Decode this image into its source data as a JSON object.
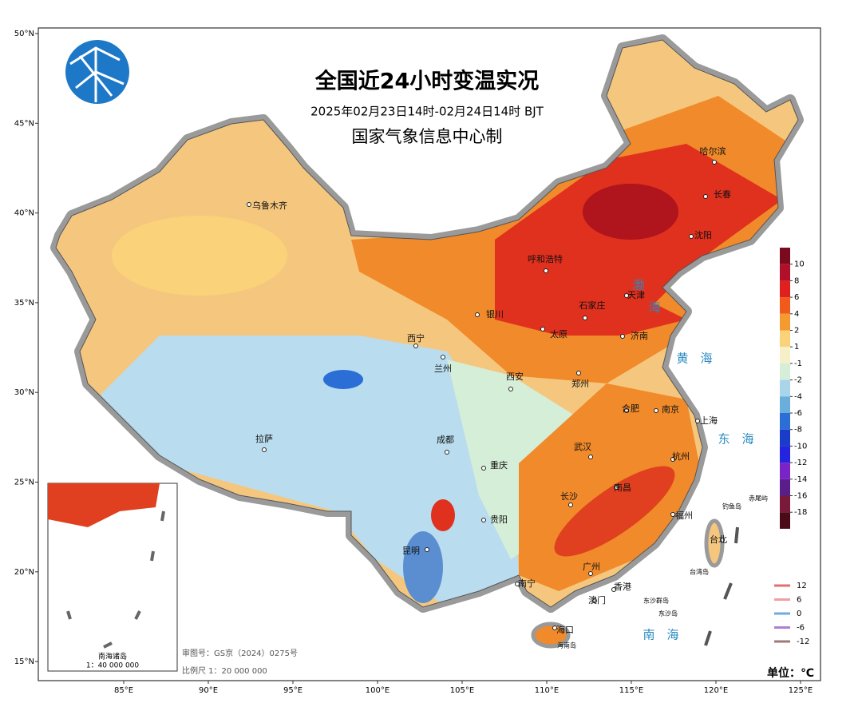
{
  "title": "全国近24小时变温实况",
  "subtitle": "2025年02月23日14时-02月24日14时 BJT",
  "producer": "国家气象信息中心制",
  "lat_ticks": [
    {
      "value": 50,
      "label": "50°N"
    },
    {
      "value": 45,
      "label": "45°N"
    },
    {
      "value": 40,
      "label": "40°N"
    },
    {
      "value": 35,
      "label": "35°N"
    },
    {
      "value": 30,
      "label": "30°N"
    },
    {
      "value": 25,
      "label": "25°N"
    },
    {
      "value": 20,
      "label": "20°N"
    },
    {
      "value": 15,
      "label": "15°N"
    }
  ],
  "lon_ticks": [
    {
      "value": 85,
      "label": "85°E"
    },
    {
      "value": 90,
      "label": "90°E"
    },
    {
      "value": 95,
      "label": "95°E"
    },
    {
      "value": 100,
      "label": "100°E"
    },
    {
      "value": 105,
      "label": "105°E"
    },
    {
      "value": 110,
      "label": "110°E"
    },
    {
      "value": 115,
      "label": "115°E"
    },
    {
      "value": 120,
      "label": "120°E"
    },
    {
      "value": 125,
      "label": "125°E"
    }
  ],
  "cities": [
    "哈尔滨",
    "长春",
    "沈阳",
    "乌鲁木齐",
    "呼和浩特",
    "天津",
    "石家庄",
    "银川",
    "太原",
    "济南",
    "西宁",
    "兰州",
    "西安",
    "郑州",
    "合肥",
    "南京",
    "上海",
    "拉萨",
    "成都",
    "武汉",
    "杭州",
    "重庆",
    "长沙",
    "南昌",
    "贵阳",
    "福州",
    "昆明",
    "台北",
    "南宁",
    "广州",
    "香港",
    "澳门",
    "海口"
  ],
  "islands": [
    "钓鱼岛",
    "赤尾屿",
    "台湾岛",
    "东沙群岛",
    "东沙岛",
    "海南岛"
  ],
  "seas": [
    "渤",
    "海",
    "黄　海",
    "东　海",
    "南　海"
  ],
  "colorbar": {
    "ticks": [
      10,
      8,
      6,
      4,
      2,
      1,
      -1,
      -2,
      -4,
      -6,
      -8,
      -10,
      -12,
      -14,
      -16,
      -18
    ],
    "colors": [
      "#7a0a1e",
      "#b0102a",
      "#e0201f",
      "#f05a1a",
      "#f59a30",
      "#fad27a",
      "#f5f0c8",
      "#d5eed8",
      "#a9d4ea",
      "#6aaedc",
      "#2b6fd6",
      "#1a3cc8",
      "#2424e0",
      "#7a24c8",
      "#5a1e8a",
      "#7a1a3a",
      "#4a0a18"
    ]
  },
  "contour_legend": {
    "levels": [
      12,
      6,
      0,
      -6,
      -12
    ],
    "colors": [
      "#e07070",
      "#f0a0a0",
      "#70a8e0",
      "#b080d0",
      "#a07878"
    ]
  },
  "inset": {
    "title": "南海诸岛",
    "scale": "1：40 000 000"
  },
  "footer": {
    "approval": "审图号：GS京（2024）0275号",
    "scale": "比例尺 1：20 000 000",
    "unit": "单位：℃"
  }
}
